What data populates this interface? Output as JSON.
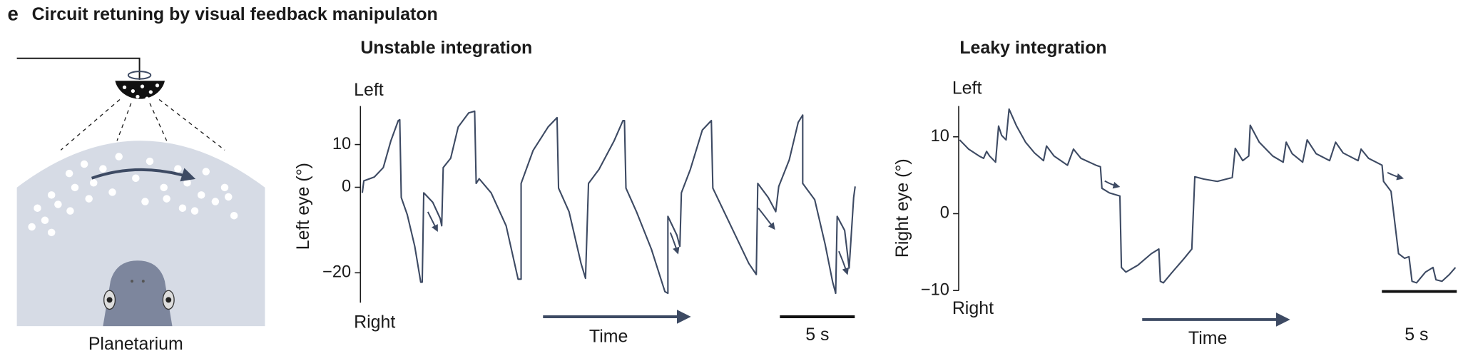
{
  "panel_label": "e",
  "title": "Circuit retuning by visual feedback manipulaton",
  "diagram": {
    "label": "Planetarium"
  },
  "chart_data": [
    {
      "type": "line",
      "title": "Unstable integration",
      "y_label": "Left eye (°)",
      "top_label": "Left",
      "bottom_label": "Right",
      "x_label": "Time",
      "scale_bar": {
        "value": 5,
        "label": "5 s"
      },
      "color": "#3d4a63",
      "xlim": [
        0,
        33.5
      ],
      "ylim": [
        -27,
        19
      ],
      "yticks": [
        10,
        0,
        {
          "value": -20,
          "label": "−20"
        }
      ],
      "x": [
        0,
        0.1,
        0.8,
        1.4,
        1.9,
        2.4,
        2.5,
        2.6,
        3.0,
        3.5,
        3.9,
        4.0,
        4.1,
        4.7,
        5.2,
        5.3,
        5.4,
        5.9,
        6.4,
        7.1,
        7.5,
        7.6,
        7.8,
        8.6,
        9.6,
        10.4,
        10.6,
        10.6,
        11.4,
        12.4,
        13.0,
        13.1,
        13.8,
        14.6,
        14.9,
        15.1,
        15.8,
        16.8,
        17.4,
        17.5,
        17.6,
        18.3,
        19.3,
        20.2,
        20.4,
        20.4,
        21.0,
        21.2,
        21.3,
        21.9,
        22.7,
        23.3,
        23.4,
        24.6,
        25.8,
        26.3,
        26.4,
        27.1,
        27.6,
        27.8,
        28.5,
        29.1,
        29.4,
        29.4,
        30.2,
        30.9,
        31.4,
        31.6,
        31.7,
        32.2,
        32.5,
        32.8,
        32.9
      ],
      "values": [
        -1.3,
        1.5,
        2.4,
        4.6,
        10.8,
        15.6,
        15.8,
        -2.4,
        -6.4,
        -13.8,
        -22.2,
        -22.2,
        -1.3,
        -3.5,
        -7.3,
        -9.0,
        4.6,
        6.8,
        14.1,
        17.4,
        17.8,
        0.9,
        2.0,
        -1.3,
        -9.0,
        -21.5,
        -21.5,
        0.9,
        8.6,
        14.1,
        16.3,
        -0.2,
        -5.7,
        -17.8,
        -21.3,
        0.9,
        4.2,
        10.8,
        15.6,
        15.6,
        -0.2,
        -5.7,
        -14.5,
        -24.4,
        -24.8,
        -6.8,
        -11.2,
        -13.8,
        -1.3,
        4.2,
        13.4,
        15.6,
        -0.2,
        -9.0,
        -17.8,
        -20.4,
        0.9,
        -2.4,
        -5.7,
        0.2,
        6.4,
        15.2,
        16.9,
        0.9,
        -2.9,
        -13.4,
        -22.2,
        -24.8,
        -6.8,
        -10.1,
        -18.9,
        -2.4,
        0.2
      ]
    },
    {
      "type": "line",
      "title": "Leaky integration",
      "y_label": "Right eye (°)",
      "top_label": "Left",
      "bottom_label": "Right",
      "x_label": "Time",
      "scale_bar": {
        "value": 5,
        "label": "5 s"
      },
      "color": "#3d4a63",
      "xlim": [
        0,
        33.5
      ],
      "ylim": [
        -10,
        14
      ],
      "yticks": [
        10,
        0,
        {
          "value": -10,
          "label": "−10"
        }
      ],
      "x": [
        0,
        0.6,
        1.3,
        1.6,
        1.8,
        2.0,
        2.4,
        2.6,
        2.8,
        3.1,
        3.3,
        3.8,
        4.4,
        5.0,
        5.6,
        5.8,
        6.3,
        7.2,
        7.6,
        8.1,
        9.1,
        9.4,
        9.5,
        10.0,
        10.7,
        10.8,
        11.1,
        11.9,
        12.8,
        13.3,
        13.4,
        13.6,
        14.2,
        15.0,
        15.5,
        15.7,
        16.3,
        17.2,
        18.2,
        18.4,
        18.9,
        19.3,
        19.4,
        20.0,
        20.9,
        21.6,
        21.8,
        22.2,
        22.9,
        23.2,
        23.8,
        24.7,
        25.1,
        25.6,
        26.6,
        26.8,
        27.3,
        28.2,
        28.3,
        28.8,
        29.3,
        29.7,
        30.0,
        30.2,
        30.5,
        31.1,
        31.6,
        31.8,
        32.2,
        32.7,
        33.1
      ],
      "values": [
        9.6,
        8.4,
        7.5,
        7.2,
        8.1,
        7.5,
        6.7,
        11.4,
        10.2,
        9.6,
        13.6,
        11.4,
        9.3,
        7.9,
        6.9,
        8.8,
        7.5,
        6.3,
        8.4,
        7.2,
        6.3,
        6.1,
        3.3,
        2.7,
        2.3,
        -7.0,
        -7.6,
        -6.7,
        -5.2,
        -4.6,
        -8.8,
        -9.0,
        -7.6,
        -5.8,
        -4.6,
        4.8,
        4.5,
        4.2,
        4.7,
        8.5,
        6.9,
        7.5,
        11.5,
        9.3,
        7.5,
        6.7,
        9.3,
        7.8,
        6.7,
        9.6,
        7.8,
        6.9,
        9.3,
        7.9,
        6.9,
        8.4,
        7.2,
        6.3,
        4.2,
        2.9,
        -5.2,
        -5.8,
        -5.6,
        -8.8,
        -9.0,
        -7.6,
        -7.0,
        -8.6,
        -8.8,
        -7.9,
        -7.0
      ]
    }
  ]
}
